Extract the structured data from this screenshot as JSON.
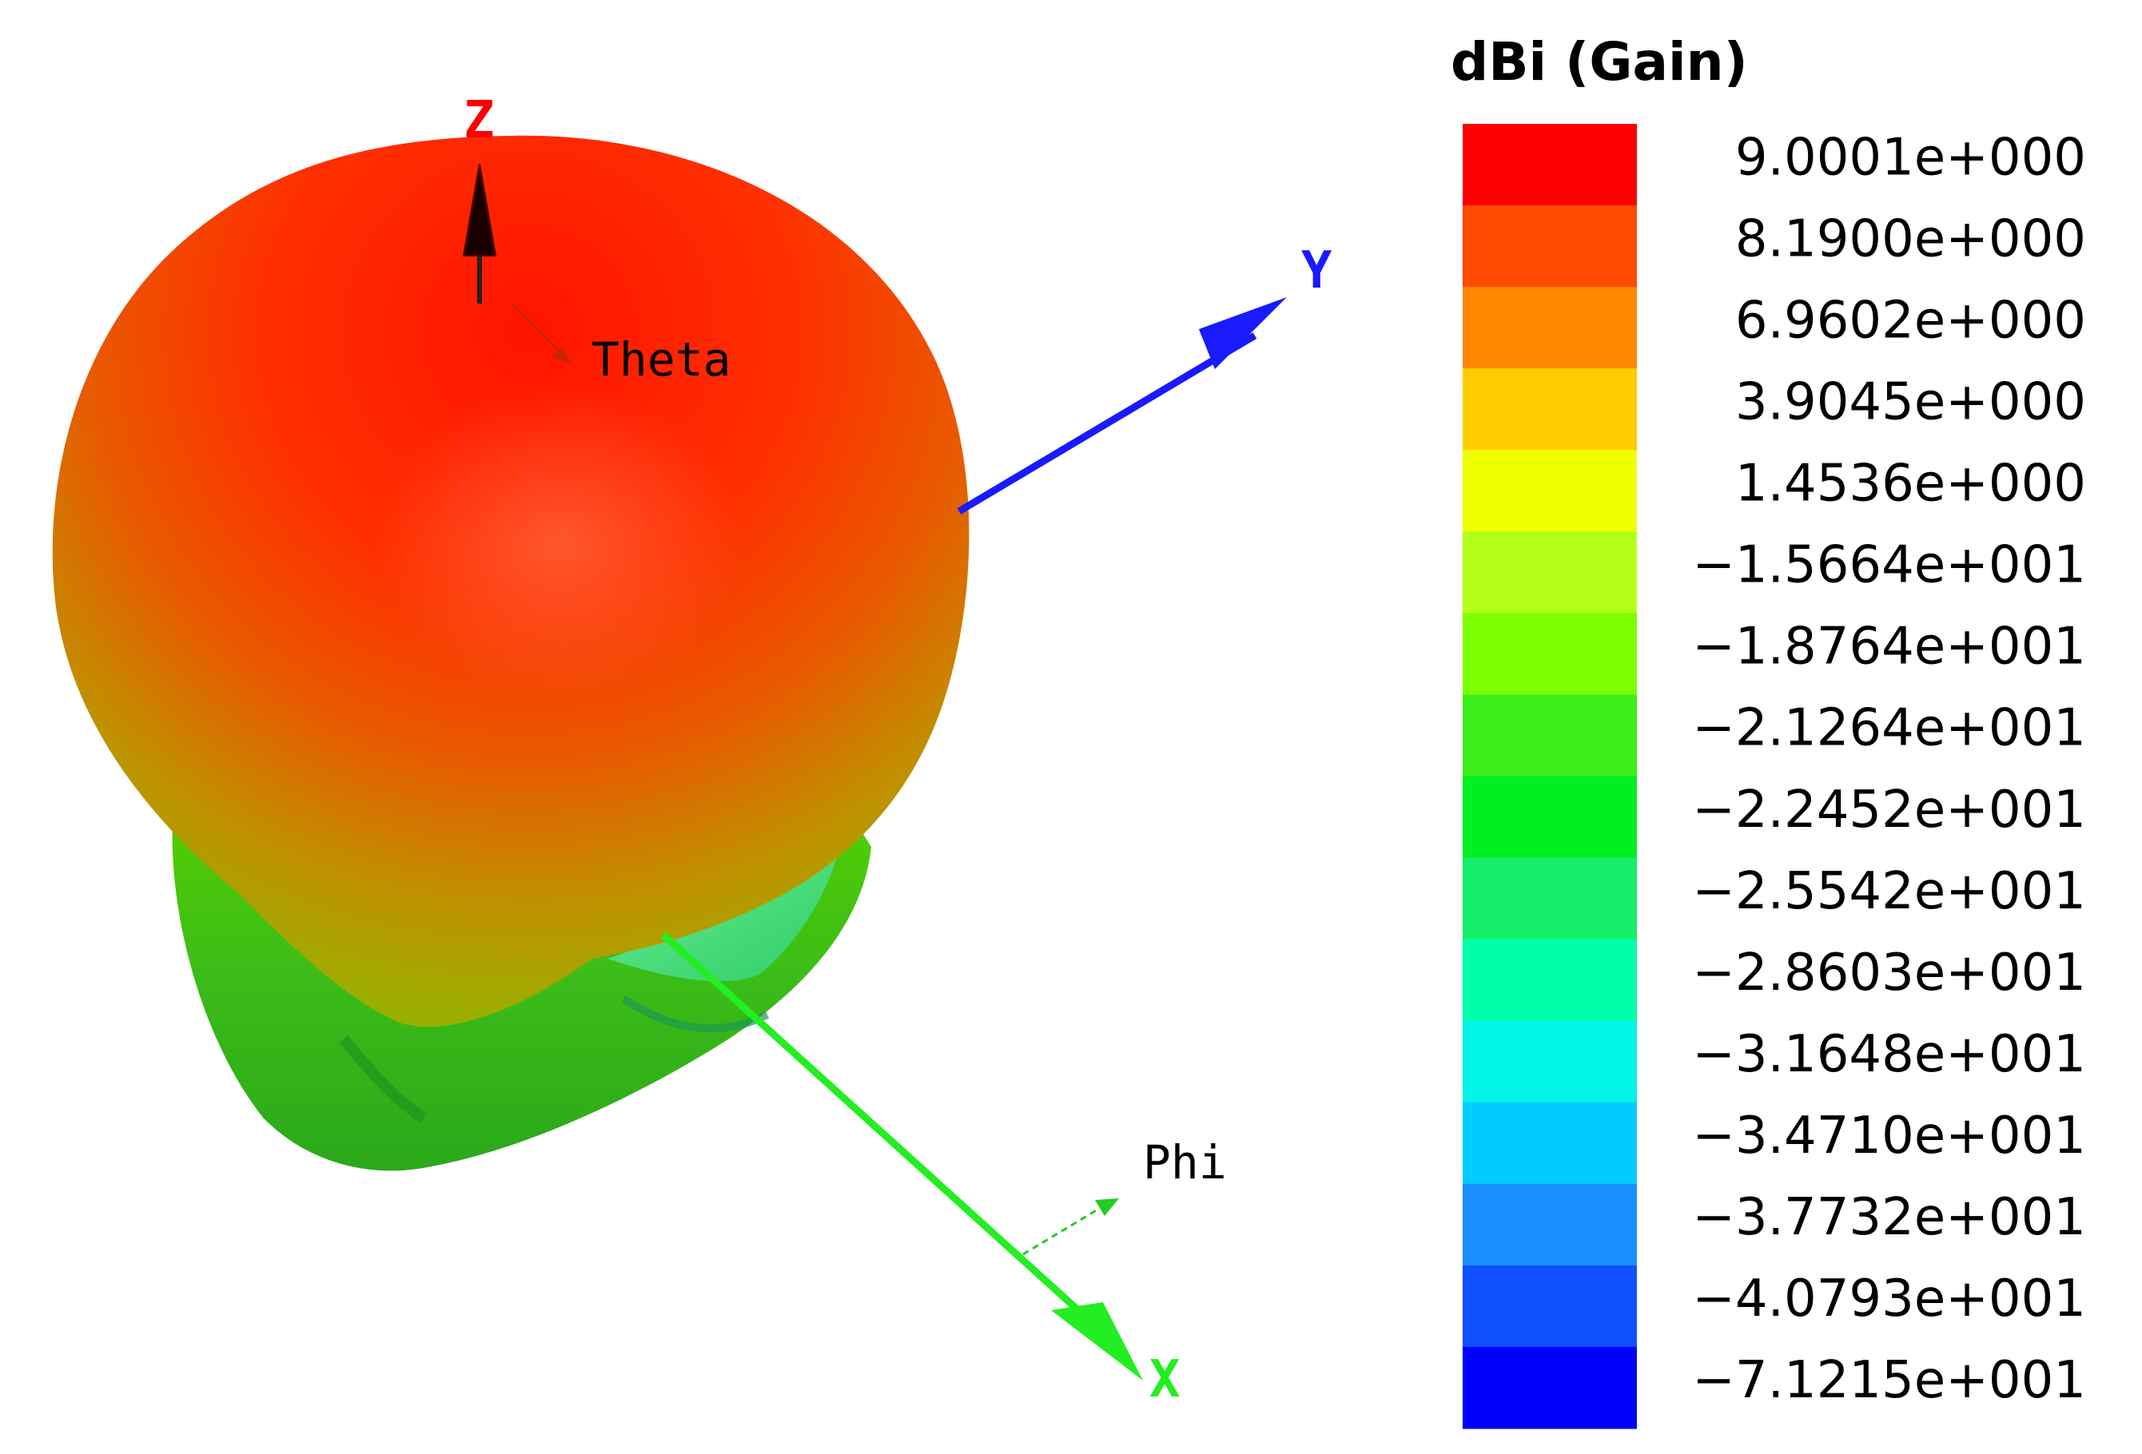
{
  "plot": {
    "axes": {
      "z_label": "Z",
      "y_label": "Y",
      "x_label": "X",
      "z_color": "#ff0000",
      "y_color": "#1a1aff",
      "x_color": "#22ee22"
    },
    "angles": {
      "theta_label": "Theta",
      "phi_label": "Phi"
    }
  },
  "legend": {
    "title": "dBi (Gain)",
    "entries": [
      {
        "value": "9.0001e+000",
        "color": "#ff0000"
      },
      {
        "value": "8.1900e+000",
        "color": "#ff4a00"
      },
      {
        "value": "6.9602e+000",
        "color": "#ff8800"
      },
      {
        "value": "3.9045e+000",
        "color": "#ffcc00"
      },
      {
        "value": "1.4536e+000",
        "color": "#eeff00"
      },
      {
        "value": "−1.5664e+001",
        "color": "#b4ff1a"
      },
      {
        "value": "−1.8764e+001",
        "color": "#7cff00"
      },
      {
        "value": "−2.1264e+001",
        "color": "#3cee1a"
      },
      {
        "value": "−2.2452e+001",
        "color": "#00ee22"
      },
      {
        "value": "−2.5542e+001",
        "color": "#14ee6a"
      },
      {
        "value": "−2.8603e+001",
        "color": "#00ffaa"
      },
      {
        "value": "−3.1648e+001",
        "color": "#00f4e8"
      },
      {
        "value": "−3.4710e+001",
        "color": "#00ccff"
      },
      {
        "value": "−3.7732e+001",
        "color": "#1a90ff"
      },
      {
        "value": "−4.0793e+001",
        "color": "#1050ff"
      },
      {
        "value": "−7.1215e+001",
        "color": "#0000ff"
      }
    ]
  }
}
